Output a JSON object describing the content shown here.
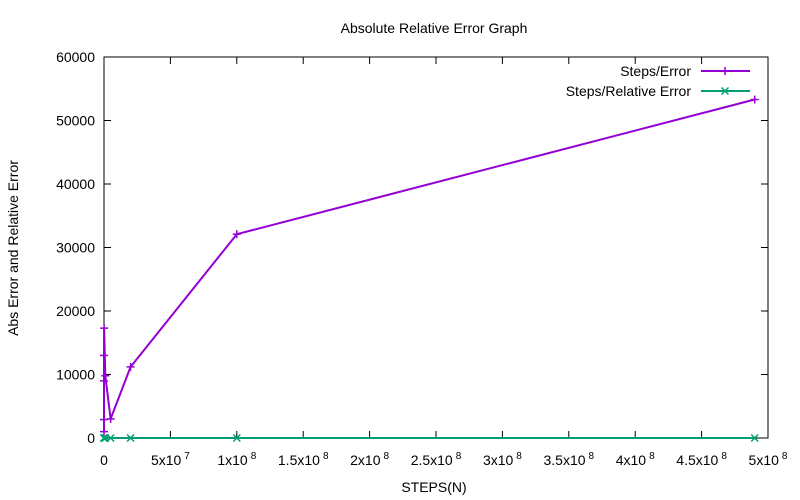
{
  "chart_data": {
    "type": "line",
    "title": "Absolute Relative Error Graph",
    "xlabel": "STEPS(N)",
    "ylabel": "Abs Error and Relative Error",
    "xlim": [
      0,
      500000000
    ],
    "ylim": [
      0,
      60000
    ],
    "x_ticks": [
      0,
      50000000,
      100000000,
      150000000,
      200000000,
      250000000,
      300000000,
      350000000,
      400000000,
      450000000,
      500000000
    ],
    "x_tick_labels": [
      {
        "mantissa": "0",
        "exponent": ""
      },
      {
        "mantissa": "5x10",
        "exponent": "7"
      },
      {
        "mantissa": "1x10",
        "exponent": "8"
      },
      {
        "mantissa": "1.5x10",
        "exponent": "8"
      },
      {
        "mantissa": "2x10",
        "exponent": "8"
      },
      {
        "mantissa": "2.5x10",
        "exponent": "8"
      },
      {
        "mantissa": "3x10",
        "exponent": "8"
      },
      {
        "mantissa": "3.5x10",
        "exponent": "8"
      },
      {
        "mantissa": "4x10",
        "exponent": "8"
      },
      {
        "mantissa": "4.5x10",
        "exponent": "8"
      },
      {
        "mantissa": "5x10",
        "exponent": "8"
      }
    ],
    "y_ticks": [
      0,
      10000,
      20000,
      30000,
      40000,
      50000,
      60000
    ],
    "y_tick_labels": [
      "0",
      "10000",
      "20000",
      "30000",
      "40000",
      "50000",
      "60000"
    ],
    "grid": false,
    "legend_position": "top-right",
    "series": [
      {
        "name": "Steps/Error",
        "color": "#9400d3",
        "marker": "plus",
        "x": [
          10,
          100,
          1000,
          10000,
          100000,
          1000000,
          5000000,
          20000000,
          100000000,
          490000000
        ],
        "y": [
          1000,
          2900,
          9000,
          13000,
          17300,
          9800,
          3000,
          11200,
          32100,
          53300
        ]
      },
      {
        "name": "Steps/Relative Error",
        "color": "#009e73",
        "marker": "cross",
        "x": [
          10,
          100,
          1000,
          10000,
          100000,
          1000000,
          5000000,
          20000000,
          100000000,
          490000000
        ],
        "y": [
          0,
          0,
          0,
          0,
          0,
          0,
          0,
          0,
          0,
          0
        ]
      }
    ]
  }
}
